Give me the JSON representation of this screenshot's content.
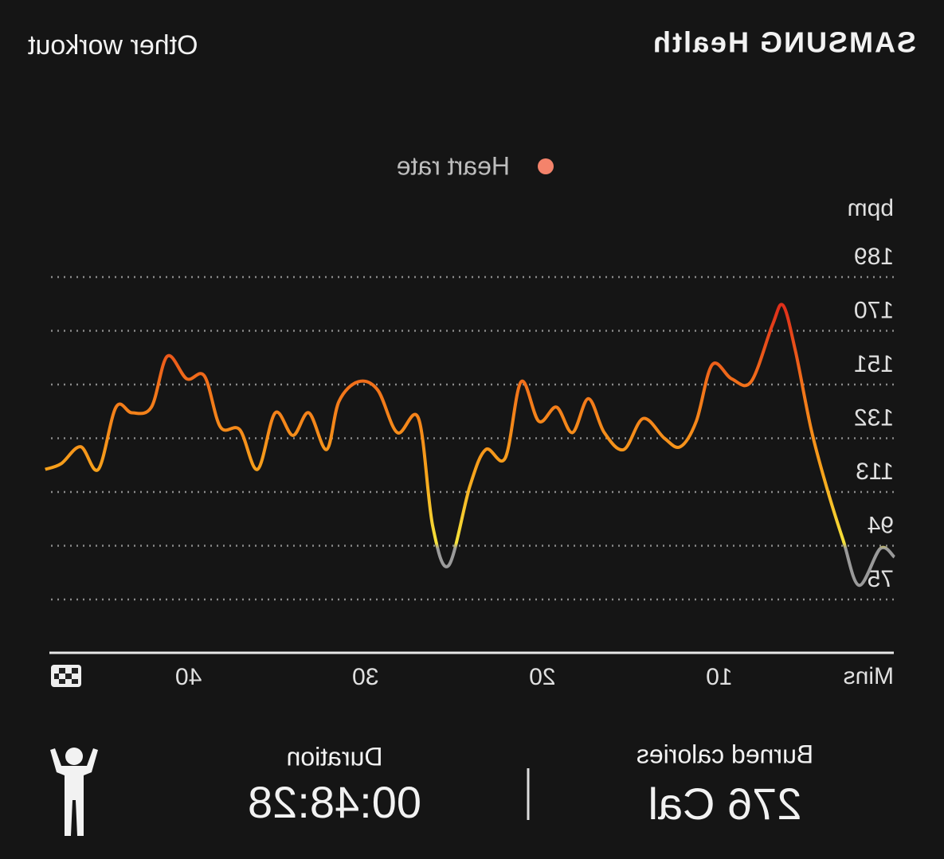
{
  "header": {
    "brand": "SAMSUNG Health",
    "workout": "Other workout"
  },
  "chart_data": {
    "type": "line",
    "legend": "Heart rate",
    "y_unit": "bpm",
    "x_unit": "Mins",
    "xlim": [
      0,
      48
    ],
    "xticks": [
      10,
      20,
      30,
      40
    ],
    "ylim": [
      75,
      189
    ],
    "yticks": [
      75,
      94,
      113,
      132,
      151,
      170,
      189
    ],
    "grid": true,
    "x": [
      0.1,
      0.9,
      2.1,
      3.0,
      3.9,
      4.8,
      5.7,
      6.4,
      7.0,
      8.2,
      9.3,
      10.4,
      11.3,
      12.2,
      13.1,
      14.3,
      15.4,
      16.5,
      17.4,
      18.3,
      19.2,
      20.2,
      21.2,
      22.1,
      23.2,
      24.1,
      25.3,
      26.2,
      27.0,
      28.2,
      29.3,
      30.4,
      31.5,
      32.2,
      33.2,
      34.1,
      35.1,
      36.1,
      37.1,
      38.2,
      39.1,
      40.1,
      41.2,
      42.1,
      43.2,
      44.1,
      45.1,
      46.1,
      47.2,
      48.1
    ],
    "series": [
      {
        "name": "Heart rate",
        "color": "#f4836b",
        "values": [
          90,
          93,
          80,
          96,
          114,
          135,
          163,
          179,
          172,
          152,
          153,
          158,
          138,
          129,
          132,
          139,
          128,
          134,
          146,
          134,
          143,
          138,
          152,
          125,
          128,
          115,
          87,
          101,
          139,
          134,
          149,
          152,
          145,
          128,
          141,
          133,
          141,
          121,
          135,
          136,
          154,
          153,
          161,
          143,
          141,
          143,
          121,
          129,
          123,
          121
        ]
      }
    ],
    "color_scale": [
      {
        "value": 93,
        "color": "#9a9a9a"
      },
      {
        "value": 95,
        "color": "#f5e23a"
      },
      {
        "value": 120,
        "color": "#f7a21b"
      },
      {
        "value": 150,
        "color": "#f2731a"
      },
      {
        "value": 178,
        "color": "#e0301a"
      }
    ]
  },
  "stats": {
    "calories_label": "Burned calories",
    "calories": "276 Cal",
    "duration_label": "Duration",
    "duration": "00:48:28"
  }
}
